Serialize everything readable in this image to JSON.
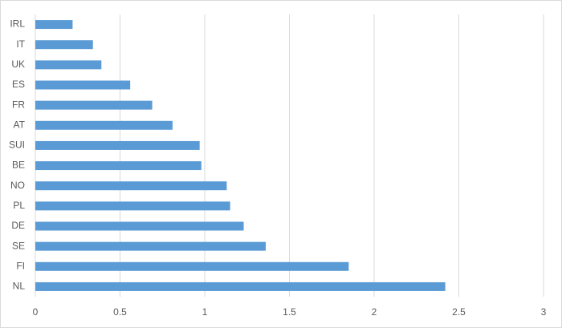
{
  "chart_data": {
    "type": "bar",
    "orientation": "horizontal",
    "categories": [
      "IRL",
      "IT",
      "UK",
      "ES",
      "FR",
      "AT",
      "SUI",
      "BE",
      "NO",
      "PL",
      "DE",
      "SE",
      "FI",
      "NL"
    ],
    "values": [
      0.22,
      0.34,
      0.39,
      0.56,
      0.69,
      0.81,
      0.97,
      0.98,
      1.13,
      1.15,
      1.23,
      1.36,
      1.85,
      2.42
    ],
    "color": "#5b9bd5",
    "xlim": [
      0,
      3
    ],
    "xticks": [
      0,
      0.5,
      1,
      1.5,
      2,
      2.5,
      3
    ],
    "grid": true
  }
}
